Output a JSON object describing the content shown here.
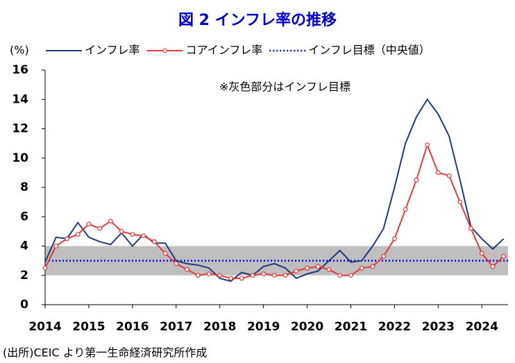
{
  "chart_data": {
    "type": "line",
    "title": "図 2 インフレ率の推移",
    "y_unit": "(%)",
    "annotation": "※灰色部分はインフレ目標",
    "source": "(出所)CEIC より第一生命経済研究所作成",
    "x": [
      2014,
      2014.25,
      2014.5,
      2014.75,
      2015,
      2015.25,
      2015.5,
      2015.75,
      2016,
      2016.25,
      2016.5,
      2016.75,
      2017,
      2017.25,
      2017.5,
      2017.75,
      2018,
      2018.25,
      2018.5,
      2018.75,
      2019,
      2019.25,
      2019.5,
      2019.75,
      2020,
      2020.25,
      2020.5,
      2020.75,
      2021,
      2021.25,
      2021.5,
      2021.75,
      2022,
      2022.25,
      2022.5,
      2022.75,
      2023,
      2023.25,
      2023.5,
      2023.75,
      2024,
      2024.25,
      2024.5
    ],
    "series": [
      {
        "name": "インフレ率",
        "color": "#1f3a7a",
        "values": [
          2.9,
          4.6,
          4.5,
          5.6,
          4.6,
          4.3,
          4.1,
          4.9,
          4.0,
          4.8,
          4.2,
          4.2,
          3.0,
          2.8,
          2.7,
          2.5,
          1.8,
          1.6,
          2.2,
          2.0,
          2.6,
          2.8,
          2.5,
          1.8,
          2.1,
          2.3,
          3.0,
          3.7,
          2.9,
          3.0,
          4.0,
          5.2,
          8.0,
          11.0,
          12.8,
          14.0,
          13.0,
          11.5,
          8.5,
          5.3,
          4.5,
          3.8,
          4.5
        ]
      },
      {
        "name": "コアインフレ率",
        "color": "#e8373a",
        "marker": true,
        "values": [
          2.5,
          4.0,
          4.5,
          4.8,
          5.5,
          5.2,
          5.7,
          5.0,
          4.8,
          4.7,
          4.3,
          3.5,
          2.8,
          2.4,
          2.0,
          2.1,
          2.0,
          1.8,
          1.8,
          2.0,
          2.1,
          2.0,
          2.0,
          2.3,
          2.5,
          2.6,
          2.4,
          2.0,
          2.0,
          2.5,
          2.6,
          3.3,
          4.5,
          6.5,
          8.5,
          10.9,
          9.0,
          8.8,
          7.0,
          5.2,
          3.5,
          2.6,
          3.3
        ]
      }
    ],
    "target": {
      "name": "インフレ目標（中央値）",
      "color": "#0000ff",
      "value": 3
    },
    "band": {
      "range": [
        2,
        4
      ],
      "color": "#bfbfbf"
    },
    "xlim": [
      2014,
      2024.6
    ],
    "xticks": [
      2014,
      2015,
      2016,
      2017,
      2018,
      2019,
      2020,
      2021,
      2022,
      2023,
      2024
    ],
    "ylim": [
      0,
      16
    ],
    "yticks": [
      0,
      2,
      4,
      6,
      8,
      10,
      12,
      14,
      16
    ]
  }
}
